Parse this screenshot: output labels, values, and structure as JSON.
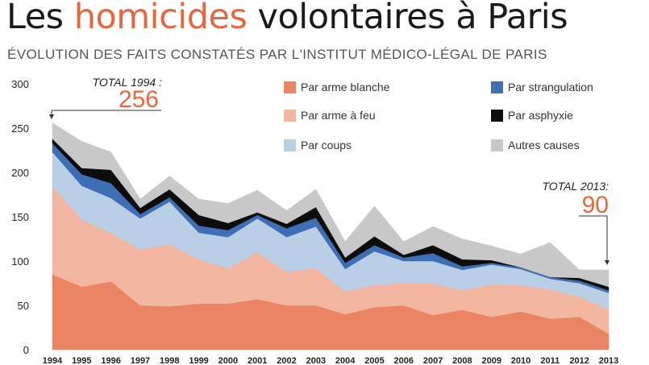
{
  "title": {
    "prefix": "Les ",
    "highlight": "homicides",
    "suffix": " volontaires à Paris"
  },
  "subtitle": "ÉVOLUTION DES FAITS CONSTATÉS PAR L'INSTITUT MÉDICO-LÉGAL DE PARIS",
  "chart_data": {
    "type": "area",
    "stacked": true,
    "x": [
      "1994",
      "1995",
      "1996",
      "1997",
      "1998",
      "1999",
      "2000",
      "2001",
      "2002",
      "2003",
      "2004",
      "2005",
      "2006",
      "2007",
      "2008",
      "2009",
      "2010",
      "2011",
      "2012",
      "2013"
    ],
    "ylim": [
      0,
      300
    ],
    "yticks": [
      0,
      50,
      100,
      150,
      200,
      250,
      300
    ],
    "grid": false,
    "legend_position": "top",
    "series": [
      {
        "name": "Par arme blanche",
        "color": "#ea8463",
        "values": [
          85,
          71,
          77,
          50,
          49,
          52,
          52,
          57,
          50,
          50,
          40,
          48,
          50,
          39,
          45,
          37,
          43,
          35,
          37,
          18
        ]
      },
      {
        "name": "Par arme à feu",
        "color": "#f3b6a0",
        "values": [
          100,
          76,
          55,
          63,
          70,
          50,
          40,
          53,
          38,
          42,
          26,
          25,
          25,
          36,
          22,
          37,
          30,
          33,
          23,
          27
        ]
      },
      {
        "name": "Par coups",
        "color": "#b9cfe5",
        "values": [
          38,
          38,
          39,
          35,
          48,
          30,
          35,
          38,
          39,
          47,
          25,
          38,
          25,
          25,
          23,
          22,
          18,
          12,
          15,
          19
        ]
      },
      {
        "name": "Par strangulation",
        "color": "#3e6eb3",
        "values": [
          10,
          13,
          17,
          5,
          5,
          8,
          8,
          4,
          10,
          10,
          7,
          7,
          4,
          9,
          4,
          2,
          2,
          2,
          3,
          3
        ]
      },
      {
        "name": "Par asphyxie",
        "color": "#0d0d0d",
        "values": [
          5,
          7,
          15,
          7,
          9,
          12,
          8,
          3,
          5,
          12,
          6,
          10,
          3,
          9,
          8,
          3,
          0,
          0,
          3,
          4
        ]
      },
      {
        "name": "Autres causes",
        "color": "#c8c8c8",
        "values": [
          18,
          30,
          20,
          10,
          15,
          18,
          22,
          25,
          15,
          20,
          18,
          34,
          15,
          21,
          23,
          16,
          15,
          39,
          9,
          19
        ]
      }
    ],
    "annotations": [
      {
        "label": "TOTAL 1994 :",
        "value": "256",
        "x": "1994"
      },
      {
        "label": "TOTAL 2013:",
        "value": "90",
        "x": "2013"
      }
    ]
  }
}
